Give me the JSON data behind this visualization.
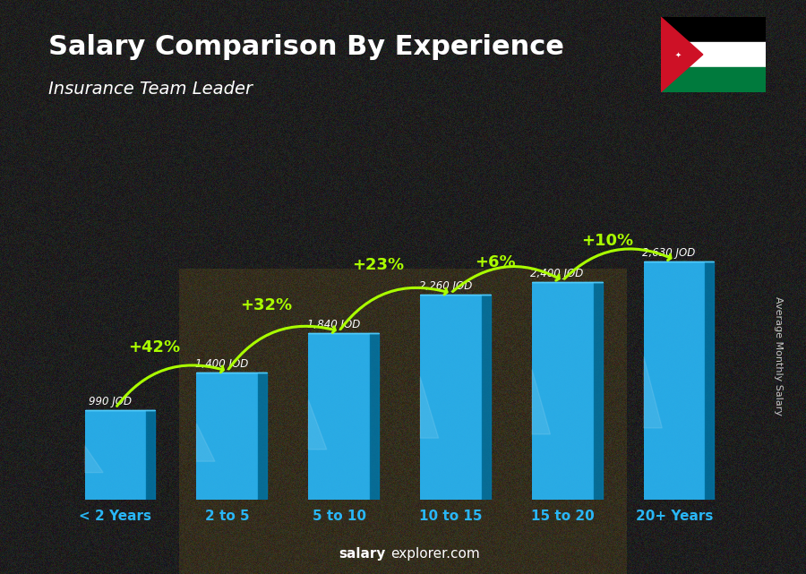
{
  "title": "Salary Comparison By Experience",
  "subtitle": "Insurance Team Leader",
  "categories": [
    "< 2 Years",
    "2 to 5",
    "5 to 10",
    "10 to 15",
    "15 to 20",
    "20+ Years"
  ],
  "values": [
    990,
    1400,
    1840,
    2260,
    2400,
    2630
  ],
  "value_labels": [
    "990 JOD",
    "1,400 JOD",
    "1,840 JOD",
    "2,260 JOD",
    "2,400 JOD",
    "2,630 JOD"
  ],
  "pct_labels": [
    "+42%",
    "+32%",
    "+23%",
    "+6%",
    "+10%"
  ],
  "bar_color_main": "#29b6f6",
  "bar_color_dark": "#0077aa",
  "bar_color_top": "#55d0ff",
  "title_color": "#ffffff",
  "subtitle_color": "#ffffff",
  "label_color": "#ffffff",
  "pct_color": "#aaff00",
  "axis_label_color": "#29b6f6",
  "watermark_bold": "salary",
  "watermark_rest": "explorer.com",
  "side_label": "Average Monthly Salary",
  "ylim": [
    0,
    3300
  ],
  "bar_width": 0.55,
  "fig_width": 9.0,
  "fig_height": 6.41,
  "dpi": 100
}
